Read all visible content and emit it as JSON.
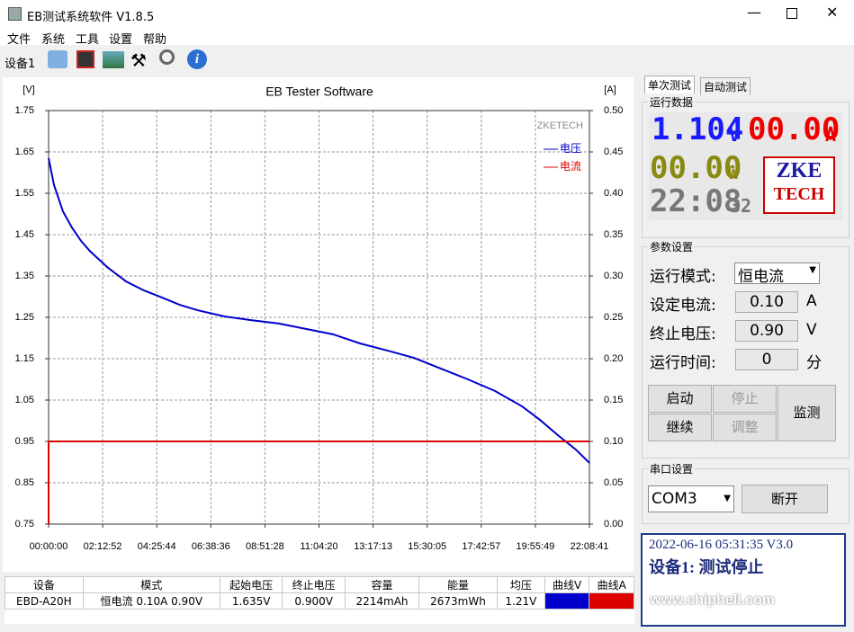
{
  "window": {
    "title": "EB测试系统软件 V1.8.5"
  },
  "menu": [
    "文件",
    "系统",
    "工具",
    "设置",
    "帮助"
  ],
  "toolbar": {
    "device_tab": "设备1"
  },
  "chart_data": {
    "type": "line",
    "title": "EB Tester Software",
    "y_label": "[V]",
    "y2_label": "[A]",
    "watermark": "ZKETECH",
    "x": [
      0,
      0,
      796,
      2122,
      3449,
      4775,
      6102,
      8755,
      11408,
      14061,
      16714,
      19367,
      22020,
      26000,
      29979,
      33959,
      37939,
      41918,
      45897,
      49876,
      53856,
      57835,
      61815,
      65794,
      69773,
      72426,
      75079,
      77733,
      79721
    ],
    "series": [
      {
        "name": "电压",
        "color": "#0000cc",
        "values": [
          null,
          1.635,
          1.57,
          1.506,
          1.467,
          1.435,
          1.41,
          1.37,
          1.337,
          1.315,
          1.298,
          1.28,
          1.267,
          1.252,
          1.243,
          1.235,
          1.222,
          1.209,
          1.187,
          1.17,
          1.152,
          1.126,
          1.1,
          1.072,
          1.035,
          1.002,
          0.965,
          0.93,
          0.898
        ]
      },
      {
        "name": "电流",
        "color": "#dd0000",
        "axis": "y2",
        "values": [
          0,
          0.1,
          0.1,
          0.1,
          0.1,
          0.1,
          0.1,
          0.1,
          0.1,
          0.1,
          0.1,
          0.1,
          0.1,
          0.1,
          0.1,
          0.1,
          0.1,
          0.1,
          0.1,
          0.1,
          0.1,
          0.1,
          0.1,
          0.1,
          0.1,
          0.1,
          0.1,
          0.1,
          0.1
        ]
      }
    ],
    "xlim": [
      0,
      79721
    ],
    "xticks": [
      {
        "value": 0,
        "label": "00:00:00"
      },
      {
        "value": 7972,
        "label": "02:12:52"
      },
      {
        "value": 15944,
        "label": "04:25:44"
      },
      {
        "value": 23916,
        "label": "06:38:36"
      },
      {
        "value": 31888,
        "label": "08:51:28"
      },
      {
        "value": 39860,
        "label": "11:04:20"
      },
      {
        "value": 47833,
        "label": "13:17:13"
      },
      {
        "value": 55805,
        "label": "15:30:05"
      },
      {
        "value": 63777,
        "label": "17:42:57"
      },
      {
        "value": 71749,
        "label": "19:55:49"
      },
      {
        "value": 79721,
        "label": "22:08:41"
      }
    ],
    "ylim": [
      0.75,
      1.75
    ],
    "yticks": [
      1.75,
      1.65,
      1.55,
      1.45,
      1.35,
      1.25,
      1.15,
      1.05,
      0.95,
      0.85,
      0.75
    ],
    "y2lim": [
      0,
      0.5
    ],
    "y2ticks": [
      {
        "value": 0.5,
        "label": "0.50"
      },
      0.45,
      {
        "value": 0.4,
        "label": "0.40"
      },
      0.35,
      {
        "value": 0.3,
        "label": "0.30"
      },
      0.25,
      {
        "value": 0.2,
        "label": "0.20"
      },
      0.15,
      {
        "value": 0.1,
        "label": "0.10"
      },
      0.05,
      {
        "value": 0,
        "label": "0.00"
      }
    ],
    "grid": true
  },
  "table": {
    "headers": [
      "设备",
      "模式",
      "起始电压",
      "终止电压",
      "容量",
      "能量",
      "均压",
      "曲线V",
      "曲线A"
    ],
    "rows": [
      [
        "EBD-A20H",
        "恒电流  0.10A  0.90V",
        "1.635V",
        "0.900V",
        "2214mAh",
        "2673mWh",
        "1.21V"
      ]
    ]
  },
  "right_panel": {
    "tabs": [
      "单次测试",
      "自动测试"
    ],
    "run_data": {
      "title": "运行数据",
      "voltage": "1.104",
      "voltage_unit": "V",
      "current": "00.00",
      "current_unit": "A",
      "power": "00.00",
      "power_unit": "W",
      "time": "22:08",
      "seconds": "32",
      "logo": [
        "ZKE",
        "TECH"
      ]
    },
    "params": {
      "title": "参数设置",
      "rows": [
        {
          "label": "运行模式:",
          "value": "恒电流"
        },
        {
          "label": "设定电流:",
          "value": "0.10",
          "unit": "A"
        },
        {
          "label": "终止电压:",
          "value": "0.90",
          "unit": "V"
        },
        {
          "label": "运行时间:",
          "value": "0",
          "unit": "分"
        }
      ]
    },
    "buttons": [
      "启动",
      "停止",
      "继续",
      "调整",
      "监测"
    ],
    "serial": {
      "title": "串口设置",
      "port": "COM3",
      "button": "断开"
    },
    "status": {
      "line1": "2022-06-16 05:31:35 V3.0",
      "line2": "设备1: 测试停止"
    },
    "watermark": "www.chiphell.com"
  }
}
